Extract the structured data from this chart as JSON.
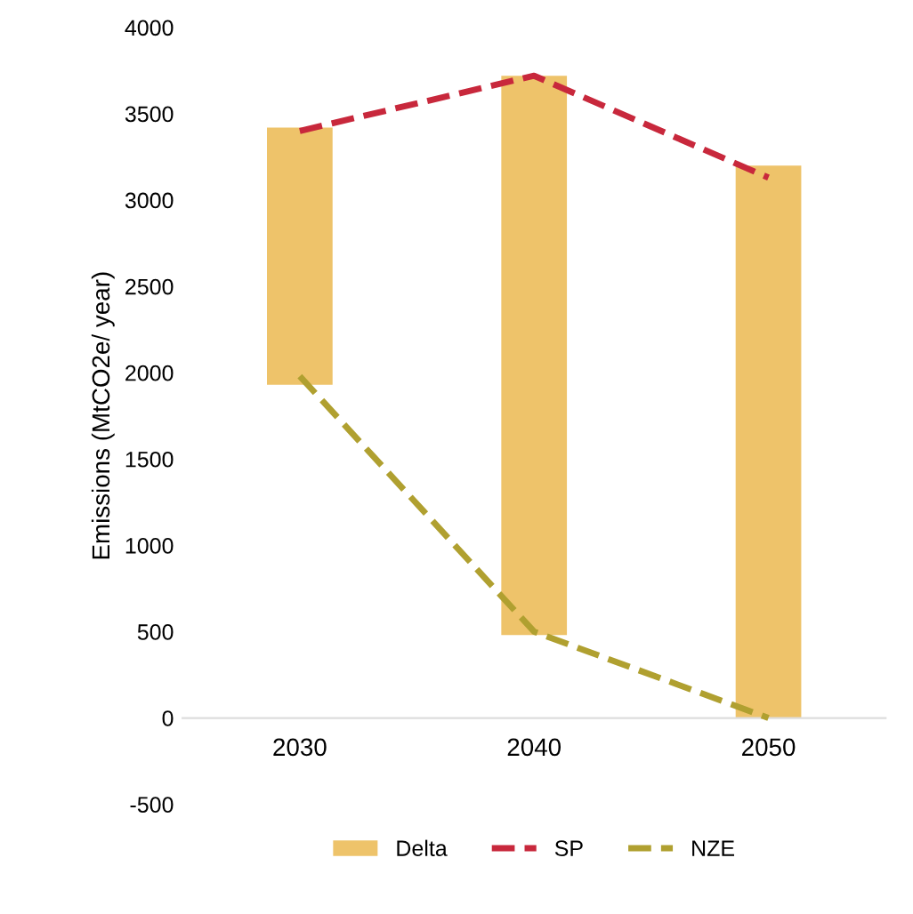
{
  "chart_data": {
    "type": "bar",
    "ylabel": "Emissions (MtCO2e/ year)",
    "categories": [
      "2030",
      "2040",
      "2050"
    ],
    "ylim": [
      -500,
      4000
    ],
    "yticks": [
      -500,
      0,
      500,
      1000,
      1500,
      2000,
      2500,
      3000,
      3500,
      4000
    ],
    "grid": false,
    "legend": "bottom",
    "series": [
      {
        "name": "Delta",
        "color": "#eec36a",
        "base": [
          1930,
          480,
          0
        ],
        "values": [
          1490,
          3240,
          3200
        ]
      },
      {
        "name": "SP",
        "type": "line",
        "color": "#c8283c",
        "line_style": "dashed",
        "values": [
          3400,
          3720,
          3130
        ]
      },
      {
        "name": "NZE",
        "type": "line",
        "color": "#b0a030",
        "line_style": "dashed",
        "values": [
          1980,
          500,
          0
        ]
      }
    ]
  }
}
